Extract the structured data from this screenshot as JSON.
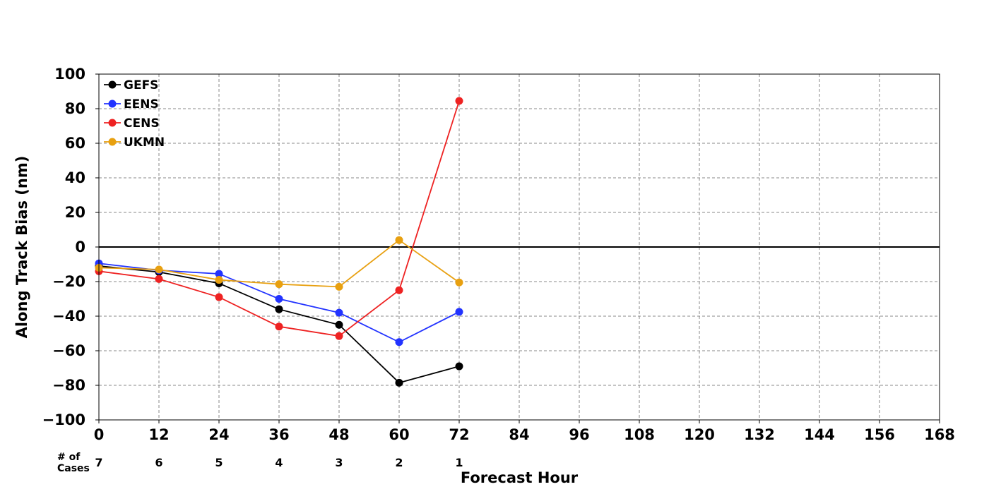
{
  "chart_data": {
    "type": "line",
    "xlabel": "Forecast Hour",
    "ylabel": "Along Track Bias (nm)",
    "xlim": [
      0,
      168
    ],
    "ylim": [
      -100,
      100
    ],
    "xticks": [
      0,
      12,
      24,
      36,
      48,
      60,
      72,
      84,
      96,
      108,
      120,
      132,
      144,
      156,
      168
    ],
    "yticks": [
      -100,
      -80,
      -60,
      -40,
      -20,
      0,
      20,
      40,
      60,
      80,
      100
    ],
    "grid": true,
    "legend_position": "top-left",
    "zero_line": true,
    "x": [
      0,
      12,
      24,
      36,
      48,
      60,
      72
    ],
    "series": [
      {
        "name": "GEFS",
        "color": "#000000",
        "values": [
          -11,
          -14.5,
          -21,
          -36,
          -45,
          -78.5,
          -69
        ]
      },
      {
        "name": "EENS",
        "color": "#2233ff",
        "values": [
          -9.5,
          -13.5,
          -15.5,
          -30,
          -38,
          -55,
          -37.5
        ]
      },
      {
        "name": "CENS",
        "color": "#ee2222",
        "values": [
          -14,
          -18.5,
          -29,
          -46,
          -51.5,
          -25,
          84.5
        ]
      },
      {
        "name": "UKMN",
        "color": "#e8a010",
        "values": [
          -12,
          -13,
          -19,
          -21.5,
          -23,
          4,
          -20.5
        ]
      }
    ],
    "cases_label_line1": "# of",
    "cases_label_line2": "Cases",
    "cases_x": [
      0,
      12,
      24,
      36,
      48,
      60,
      72
    ],
    "cases": [
      7,
      6,
      5,
      4,
      3,
      2,
      1
    ]
  }
}
